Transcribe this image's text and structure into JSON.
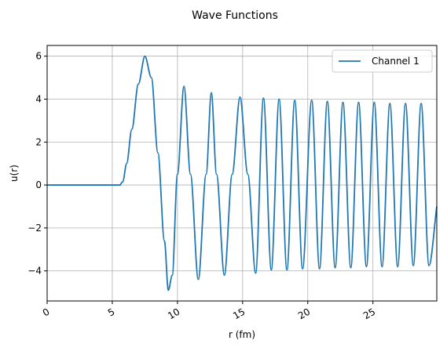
{
  "chart_data": {
    "type": "line",
    "title": "Wave Functions",
    "xlabel": "r (fm)",
    "ylabel": "u(r)",
    "xlim": [
      0,
      29.9
    ],
    "ylim": [
      -5.4,
      6.5
    ],
    "xticks": [
      0,
      5,
      10,
      15,
      20,
      25
    ],
    "xtick_labels": [
      "0",
      "5",
      "10",
      "15",
      "20",
      "25"
    ],
    "xtick_rotation_deg": 30,
    "yticks": [
      -4,
      -2,
      0,
      2,
      4,
      6
    ],
    "ytick_labels": [
      "−4",
      "−2",
      "0",
      "2",
      "4",
      "6"
    ],
    "grid": true,
    "legend_position": "top-right",
    "series": [
      {
        "name": "Channel 1",
        "color": "#1f77b4",
        "x": [
          0,
          5.6,
          5.8,
          6.1,
          6.5,
          7.0,
          7.5,
          8.0,
          8.5,
          9.0,
          9.3,
          9.6,
          10.0,
          10.5,
          11.0,
          11.6,
          12.2,
          12.6,
          13.0,
          13.6,
          14.2,
          14.8,
          15.4,
          16.0,
          16.6,
          17.2,
          17.8,
          18.4,
          19.0,
          19.6,
          20.3,
          20.9,
          21.5,
          22.1,
          22.7,
          23.3,
          23.9,
          24.5,
          25.1,
          25.7,
          26.3,
          26.9,
          27.5,
          28.1,
          28.7,
          29.3,
          29.9
        ],
        "y": [
          0,
          0,
          0.15,
          1.0,
          2.6,
          4.7,
          6.0,
          5.0,
          1.5,
          -2.6,
          -4.9,
          -4.2,
          0.5,
          4.6,
          0.5,
          -4.4,
          0.5,
          4.3,
          0.5,
          -4.2,
          0.5,
          4.1,
          0.5,
          -4.1,
          4.05,
          -3.95,
          4.0,
          -3.95,
          3.95,
          -3.9,
          3.95,
          -3.9,
          3.9,
          -3.85,
          3.85,
          -3.85,
          3.85,
          -3.8,
          3.85,
          -3.8,
          3.8,
          -3.8,
          3.8,
          -3.75,
          3.8,
          -3.75,
          -1.0
        ]
      }
    ]
  }
}
